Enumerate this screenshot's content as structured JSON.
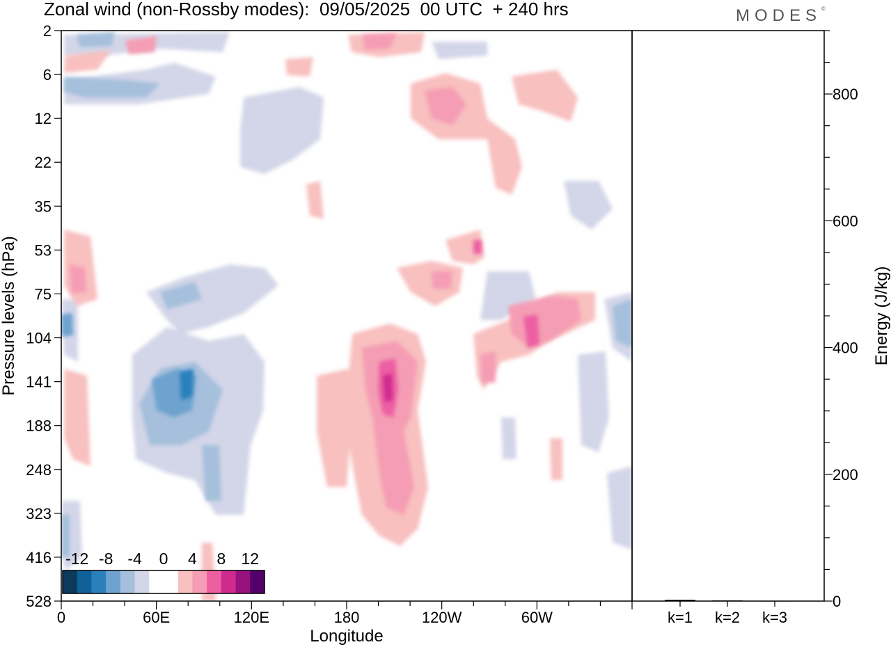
{
  "header": {
    "title": "Zonal wind (non-Rossby modes):  09/05/2025  00 UTC  + 240 hrs",
    "brand": "MODES"
  },
  "chart_data": [
    {
      "type": "heatmap",
      "title": "Zonal wind (non-Rossby modes):  09/05/2025  00 UTC  + 240 hrs",
      "xlabel": "Longitude",
      "ylabel": "Pressure levels (hPa)",
      "x_ticks": [
        "0",
        "60E",
        "120E",
        "180",
        "120W",
        "60W"
      ],
      "y_ticks": [
        "2",
        "6",
        "12",
        "22",
        "35",
        "53",
        "75",
        "104",
        "141",
        "188",
        "248",
        "323",
        "416",
        "528"
      ],
      "colorbar": {
        "labels": [
          "-12",
          "-8",
          "-4",
          "0",
          "4",
          "8",
          "12"
        ],
        "colors": [
          "#0b3a5c",
          "#11609a",
          "#2a80bd",
          "#6ea3cf",
          "#a6bfdc",
          "#d3d6e8",
          "#ffffff",
          "#ffffff",
          "#f8c0bf",
          "#f59db4",
          "#ec5fa3",
          "#cf2a8e",
          "#97127f",
          "#54006b"
        ]
      },
      "features": [
        {
          "label": "positive zonal wind core",
          "longitude_deg": 197,
          "pressure_hPa": 141,
          "value": 8
        },
        {
          "label": "positive zonal wind core",
          "longitude_deg": 282,
          "pressure_hPa": 104,
          "value": 8
        },
        {
          "label": "negative zonal wind core",
          "longitude_deg": 78,
          "pressure_hPa": 141,
          "value": -8
        }
      ]
    },
    {
      "type": "bar",
      "categories": [
        "k=1",
        "k=2",
        "k=3"
      ],
      "values": [
        2,
        1,
        0.5
      ],
      "ylabel": "Energy (J/kg)",
      "y_ticks": [
        "0",
        "200",
        "400",
        "600",
        "800"
      ],
      "ylim": [
        0,
        900
      ]
    }
  ]
}
